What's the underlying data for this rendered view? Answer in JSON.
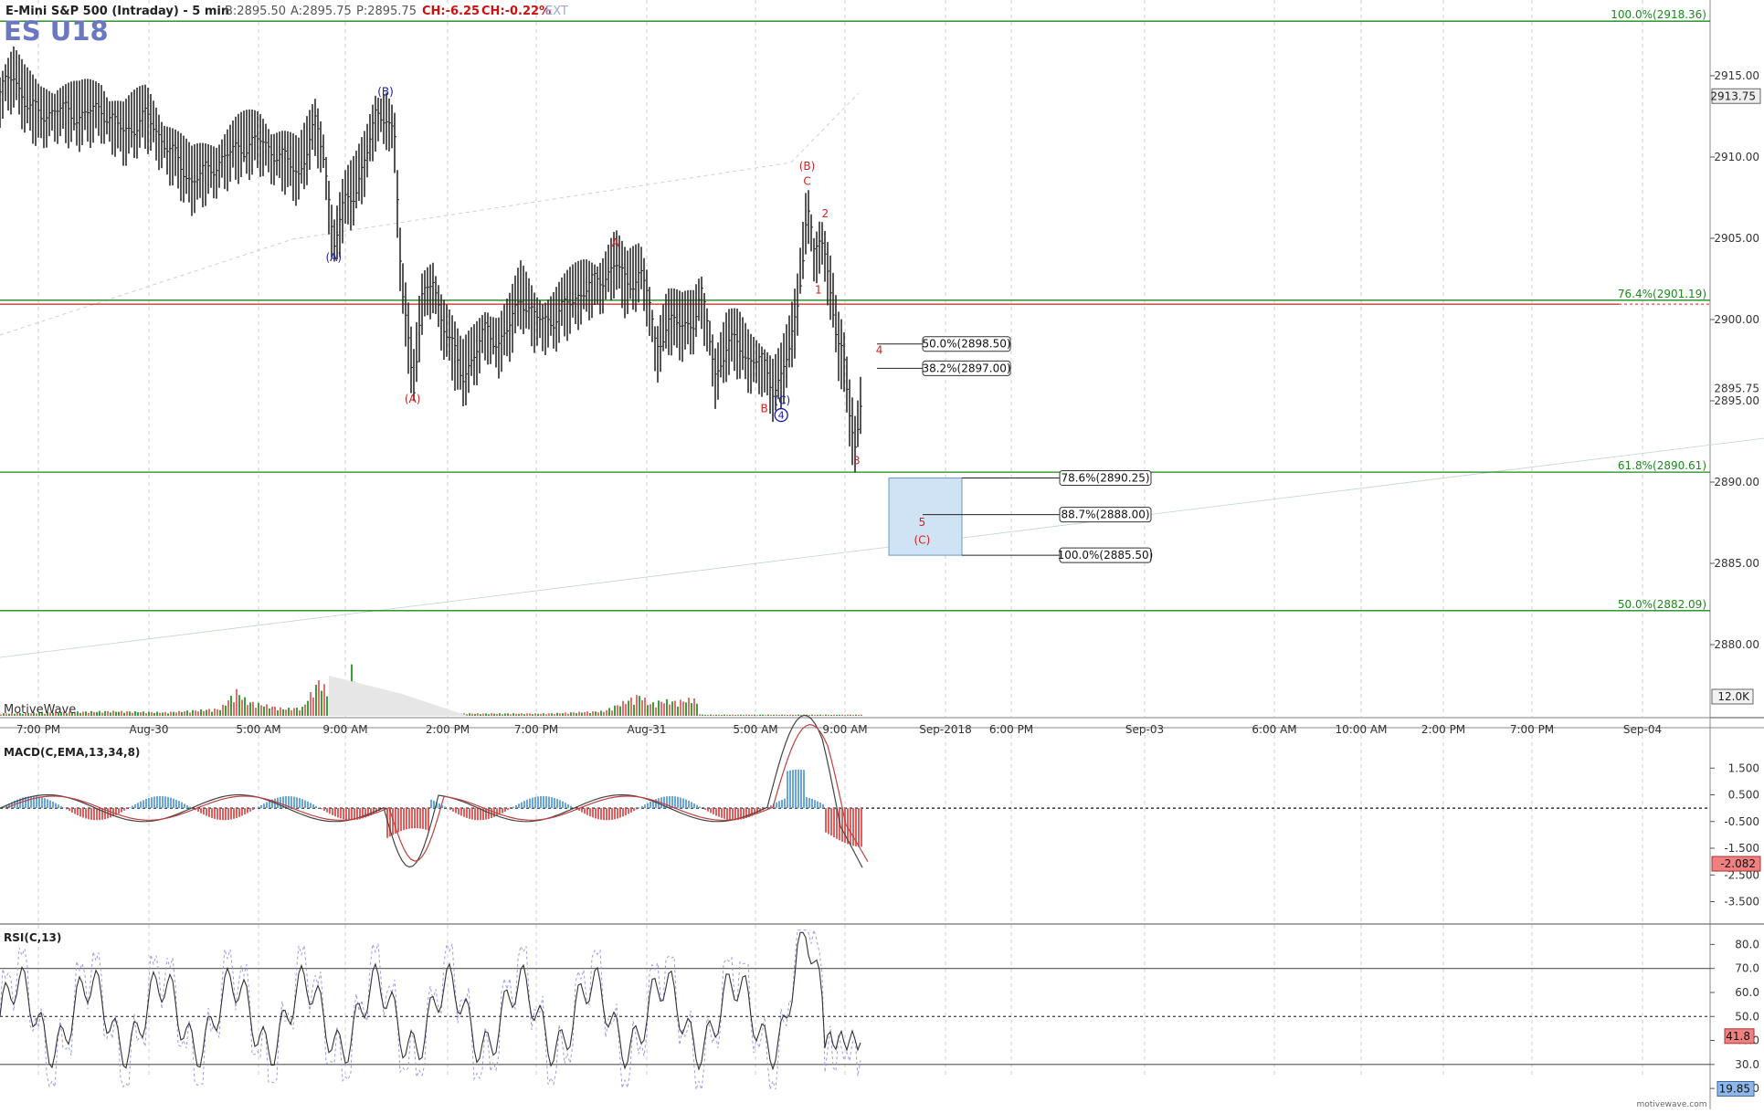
{
  "header": {
    "title": "E-Mini S&P 500 (Intraday) - 5 min",
    "bid": "B:2895.50",
    "ask": "A:2895.75",
    "price": "P:2895.75",
    "change": "CH:-6.25",
    "change_pct": "CH:-0.22%",
    "ext": "EXT",
    "symbol": "ES U18",
    "watermark": "MotiveWave",
    "footer": "motivewave.com"
  },
  "colors": {
    "price_bar": "#2b2b2b",
    "fib_green": "#1a8a1a",
    "fib_red": "#cc2222",
    "wave_red": "#d42020",
    "wave_blue": "#1a1aaa",
    "volume_red": "#e07070",
    "volume_green": "#3aa03a",
    "macd_pos": "#6aa6d8",
    "macd_neg": "#e06060",
    "target_box": "#cfe3f5",
    "symbol_color": "#6a78c0"
  },
  "chart_data": {
    "type": "candlestick",
    "price_axis": {
      "ticks": [
        "2915.00",
        "2910.00",
        "2905.00",
        "2900.00",
        "2895.00",
        "2890.00",
        "2885.00",
        "2880.00"
      ],
      "current_price": "2913.75",
      "last_price": "2895.75",
      "volume_label": "12.0K",
      "ylim": [
        2877,
        2919
      ]
    },
    "time_axis": [
      "7:00 PM",
      "Aug-30",
      "5:00 AM",
      "9:00 AM",
      "2:00 PM",
      "7:00 PM",
      "Aug-31",
      "5:00 AM",
      "9:00 AM",
      "Sep-2018",
      "6:00 PM",
      "Sep-03",
      "6:00 AM",
      "10:00 AM",
      "2:00 PM",
      "7:00 PM",
      "Sep-04"
    ],
    "price_series": [
      [
        0,
        2914.0
      ],
      [
        12,
        2915.0
      ],
      [
        22,
        2913.5
      ],
      [
        35,
        2912.5
      ],
      [
        50,
        2913.0
      ],
      [
        70,
        2912.5
      ],
      [
        90,
        2913.0
      ],
      [
        110,
        2911.5
      ],
      [
        130,
        2912.5
      ],
      [
        150,
        2910.5
      ],
      [
        170,
        2908.5
      ],
      [
        190,
        2909.5
      ],
      [
        210,
        2910.5
      ],
      [
        230,
        2911.0
      ],
      [
        250,
        2910.0
      ],
      [
        265,
        2909.0
      ],
      [
        280,
        2912.0
      ],
      [
        288,
        2910.0
      ],
      [
        296,
        2904.5
      ],
      [
        305,
        2907.0
      ],
      [
        315,
        2908.0
      ],
      [
        325,
        2910.0
      ],
      [
        333,
        2912.5
      ],
      [
        342,
        2912.8
      ],
      [
        350,
        2911.0
      ],
      [
        356,
        2902.0
      ],
      [
        362,
        2899.0
      ],
      [
        367,
        2896.0
      ],
      [
        374,
        2901.0
      ],
      [
        384,
        2902.5
      ],
      [
        392,
        2900.0
      ],
      [
        400,
        2898.5
      ],
      [
        410,
        2896.5
      ],
      [
        422,
        2898.0
      ],
      [
        432,
        2899.5
      ],
      [
        442,
        2898.5
      ],
      [
        452,
        2899.5
      ],
      [
        462,
        2901.5
      ],
      [
        475,
        2900.0
      ],
      [
        490,
        2900.0
      ],
      [
        505,
        2901.0
      ],
      [
        520,
        2902.0
      ],
      [
        535,
        2902.5
      ],
      [
        546,
        2903.6
      ],
      [
        556,
        2902.0
      ],
      [
        568,
        2903.0
      ],
      [
        575,
        2901.5
      ],
      [
        582,
        2898.0
      ],
      [
        592,
        2900.0
      ],
      [
        605,
        2899.5
      ],
      [
        615,
        2900.0
      ],
      [
        622,
        2901.5
      ],
      [
        628,
        2899.5
      ],
      [
        635,
        2896.5
      ],
      [
        645,
        2898.5
      ],
      [
        655,
        2898.5
      ],
      [
        665,
        2897.5
      ],
      [
        675,
        2897.5
      ],
      [
        686,
        2895.8
      ],
      [
        693,
        2896.5
      ],
      [
        700,
        2898.0
      ],
      [
        707,
        2900.5
      ],
      [
        712,
        2904.0
      ],
      [
        716,
        2907.2
      ],
      [
        722,
        2904.0
      ],
      [
        728,
        2905.0
      ],
      [
        733,
        2903.5
      ],
      [
        738,
        2901.5
      ],
      [
        743,
        2898.5
      ],
      [
        748,
        2897.5
      ],
      [
        753,
        2894.5
      ],
      [
        759,
        2892.0
      ],
      [
        765,
        2896.0
      ]
    ],
    "volume_series": [
      [
        0,
        1.0
      ],
      [
        60,
        1.5
      ],
      [
        120,
        2.0
      ],
      [
        180,
        1.5
      ],
      [
        240,
        3.0
      ],
      [
        258,
        10.5
      ],
      [
        270,
        6.0
      ],
      [
        290,
        4.5
      ],
      [
        310,
        3.0
      ],
      [
        330,
        3.5
      ],
      [
        350,
        16.0
      ],
      [
        358,
        8.5
      ],
      [
        368,
        7.0
      ],
      [
        378,
        5.0
      ],
      [
        384,
        24.0
      ],
      [
        390,
        2.5
      ],
      [
        420,
        1.0
      ],
      [
        480,
        1.0
      ],
      [
        540,
        1.0
      ],
      [
        600,
        1.0
      ],
      [
        660,
        2.0
      ],
      [
        700,
        9.0
      ],
      [
        710,
        5.0
      ],
      [
        725,
        6.5
      ],
      [
        740,
        6.0
      ],
      [
        760,
        7.5
      ],
      [
        765,
        1.0
      ]
    ],
    "fib_levels": [
      {
        "label": "100.0%(2918.36)",
        "price": 2918.36,
        "color": "green"
      },
      {
        "label": "76.4%(2901.19)",
        "price": 2901.19,
        "color": "green"
      },
      {
        "label": "61.8%(2890.61)",
        "price": 2890.61,
        "color": "green"
      },
      {
        "label": "50.0%(2882.09)",
        "price": 2882.09,
        "color": "green"
      }
    ],
    "red_level": 2900.95,
    "retracement_labels": [
      {
        "label": "50.0%(2898.50)",
        "price": 2898.5
      },
      {
        "label": "38.2%(2897.00)",
        "price": 2897.0
      }
    ],
    "extension_labels": [
      {
        "label": "78.6%(2890.25)",
        "price": 2890.25
      },
      {
        "label": "88.7%(2888.00)",
        "price": 2888.0
      },
      {
        "label": "100.0%(2885.50)",
        "price": 2885.5
      }
    ],
    "wave_labels": [
      {
        "text": "(B)",
        "x": 342,
        "price": 2913.8,
        "color": "blue"
      },
      {
        "text": "(A)",
        "x": 296,
        "price": 2903.6,
        "color": "blue"
      },
      {
        "text": "(A)",
        "x": 366,
        "price": 2894.9,
        "color": "red"
      },
      {
        "text": "A",
        "x": 546,
        "price": 2904.5,
        "color": "red"
      },
      {
        "text": "B",
        "x": 678,
        "price": 2894.3,
        "color": "red"
      },
      {
        "text": "(C)",
        "x": 694,
        "price": 2894.8,
        "color": "blue"
      },
      {
        "text": "(B)",
        "x": 716,
        "price": 2909.2,
        "color": "red"
      },
      {
        "text": "C",
        "x": 716,
        "price": 2908.3,
        "color": "red"
      },
      {
        "text": "2",
        "x": 732,
        "price": 2906.3,
        "color": "red"
      },
      {
        "text": "1",
        "x": 726,
        "price": 2901.6,
        "color": "red"
      },
      {
        "text": "4",
        "x": 780,
        "price": 2897.9,
        "color": "red"
      },
      {
        "text": "3",
        "x": 760,
        "price": 2891.1,
        "color": "red"
      },
      {
        "text": "5",
        "x": 818,
        "price": 2887.3,
        "color": "red"
      },
      {
        "text": "(C)",
        "x": 818,
        "price": 2886.2,
        "color": "red"
      }
    ],
    "circled_wave": {
      "text": "4",
      "x": 693,
      "price": 2893.9
    },
    "macd": {
      "label": "MACD(C,EMA,13,34,8)",
      "ticks": [
        "1.500",
        "0.500",
        "-0.500",
        "-1.500",
        "-2.500",
        "-3.500"
      ],
      "current": "-2.082",
      "ylim": [
        -4.2,
        2.5
      ]
    },
    "rsi": {
      "label": "RSI(C,13)",
      "ticks": [
        "80.0",
        "70.0",
        "60.0",
        "50.0",
        "40.0",
        "30.0",
        "20.0"
      ],
      "current": "41.8",
      "stoch": "19.85",
      "ylim": [
        17,
        87
      ]
    }
  }
}
